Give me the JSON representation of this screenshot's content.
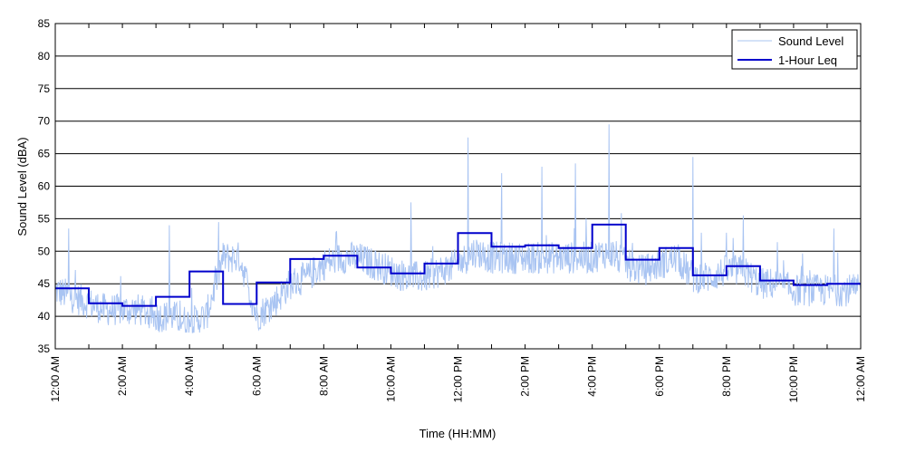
{
  "chart_data": {
    "type": "line",
    "xlabel": "Time (HH:MM)",
    "ylabel": "Sound Level (dBA)",
    "ylim": [
      35,
      85
    ],
    "xlim": [
      "12:00 AM",
      "12:00 AM"
    ],
    "yticks": [
      35,
      40,
      45,
      50,
      55,
      60,
      65,
      70,
      75,
      80,
      85
    ],
    "xtick_labels": [
      "12:00 AM",
      "2:00 AM",
      "4:00 AM",
      "6:00 AM",
      "8:00 AM",
      "10:00 AM",
      "12:00 PM",
      "2:00 PM",
      "4:00 PM",
      "6:00 PM",
      "8:00 PM",
      "10:00 PM",
      "12:00 AM"
    ],
    "grid": "horizontal",
    "legend_position": "top-right",
    "colors": {
      "sound_level": "#a9c4f2",
      "leq": "#0000cc",
      "grid": "#000000"
    },
    "series": [
      {
        "name": "Sound Level",
        "hours": [
          0,
          0.5,
          1,
          1.5,
          2,
          2.5,
          3,
          3.5,
          4,
          4.5,
          5,
          5.5,
          6,
          6.5,
          7,
          7.5,
          8,
          8.5,
          9,
          9.5,
          10,
          10.5,
          11,
          11.5,
          12,
          12.5,
          13,
          13.5,
          14,
          14.5,
          15,
          15.5,
          16,
          16.5,
          17,
          17.5,
          18,
          18.5,
          19,
          19.5,
          20,
          20.5,
          21,
          21.5,
          22,
          22.5,
          23,
          23.5,
          24
        ],
        "values": [
          44,
          43,
          42,
          41,
          41,
          41,
          40,
          40,
          39,
          40,
          49,
          49,
          40,
          42,
          45,
          46,
          48,
          49,
          49,
          48,
          47,
          46,
          46,
          47,
          48,
          50,
          49,
          49,
          49,
          49,
          49,
          49,
          49,
          50,
          48,
          47,
          48,
          49,
          46,
          46,
          47,
          47,
          45,
          45,
          44,
          44,
          44,
          44,
          44
        ]
      },
      {
        "name": "1-Hour Leq",
        "hours": [
          0,
          1,
          2,
          3,
          4,
          5,
          6,
          7,
          8,
          9,
          10,
          11,
          12,
          13,
          14,
          15,
          16,
          17,
          18,
          19,
          20,
          21,
          22,
          23
        ],
        "values": [
          44.3,
          42.0,
          41.6,
          43.0,
          46.9,
          41.9,
          45.2,
          48.8,
          49.3,
          47.5,
          46.6,
          48.1,
          52.8,
          50.7,
          50.9,
          50.5,
          54.1,
          48.7,
          50.5,
          46.3,
          47.7,
          45.5,
          44.8,
          45.0
        ]
      }
    ],
    "spikes": [
      {
        "hour": 0.4,
        "value": 53.5
      },
      {
        "hour": 3.4,
        "value": 54.0
      },
      {
        "hour": 10.6,
        "value": 57.5
      },
      {
        "hour": 12.3,
        "value": 67.5
      },
      {
        "hour": 13.3,
        "value": 62.0
      },
      {
        "hour": 14.5,
        "value": 63.0
      },
      {
        "hour": 15.5,
        "value": 63.5
      },
      {
        "hour": 16.5,
        "value": 69.5
      },
      {
        "hour": 19.0,
        "value": 64.5
      },
      {
        "hour": 20.5,
        "value": 55.5
      },
      {
        "hour": 23.2,
        "value": 53.5
      }
    ]
  }
}
